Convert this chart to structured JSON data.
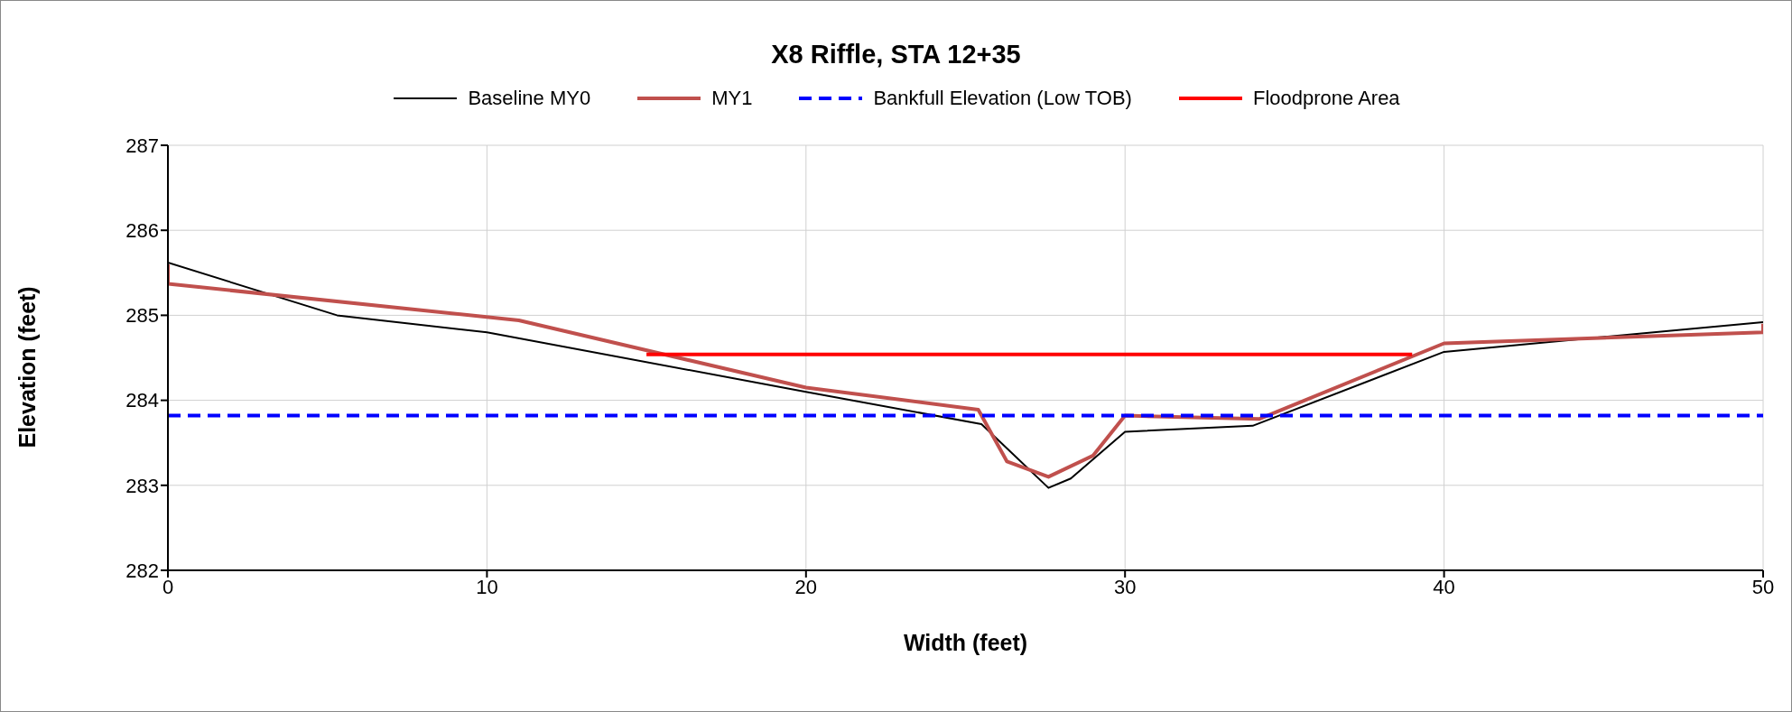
{
  "chart_data": {
    "type": "line",
    "title": "X8 Riffle, STA 12+35",
    "xlabel": "Width (feet)",
    "ylabel": "Elevation (feet)",
    "series": [
      {
        "name": "Baseline MY0",
        "color": "#000000",
        "x": [
          0,
          5.3,
          10,
          20,
          25.5,
          27.6,
          28.3,
          30,
          34,
          40,
          50
        ],
        "values": [
          285.62,
          285.0,
          284.8,
          284.1,
          283.72,
          282.97,
          283.08,
          283.63,
          283.7,
          284.57,
          284.92
        ]
      },
      {
        "name": "MY1",
        "color": "#c0504d",
        "x": [
          0,
          0,
          11,
          20,
          25.4,
          26.3,
          27.6,
          29,
          30,
          34.2,
          40,
          50,
          50
        ],
        "values": [
          285.6,
          285.37,
          284.94,
          284.15,
          283.89,
          283.28,
          283.1,
          283.35,
          283.82,
          283.78,
          284.67,
          284.8,
          284.9
        ]
      },
      {
        "name": "Bankfull Elevation (Low TOB)",
        "color": "#0000ff",
        "line_style": "dashed",
        "x": [
          0,
          50
        ],
        "values": [
          283.82,
          283.82
        ]
      },
      {
        "name": "Floodprone Area",
        "color": "#ff0000",
        "x": [
          15,
          39
        ],
        "values": [
          284.54,
          284.54
        ]
      }
    ],
    "xlim": [
      0,
      50
    ],
    "xticks": [
      0,
      10,
      20,
      30,
      40,
      50
    ],
    "ylim": [
      282,
      287
    ],
    "yticks": [
      282,
      283,
      284,
      285,
      286,
      287
    ],
    "grid": true,
    "legend": "top",
    "marker": "none",
    "line_style": "solid"
  }
}
